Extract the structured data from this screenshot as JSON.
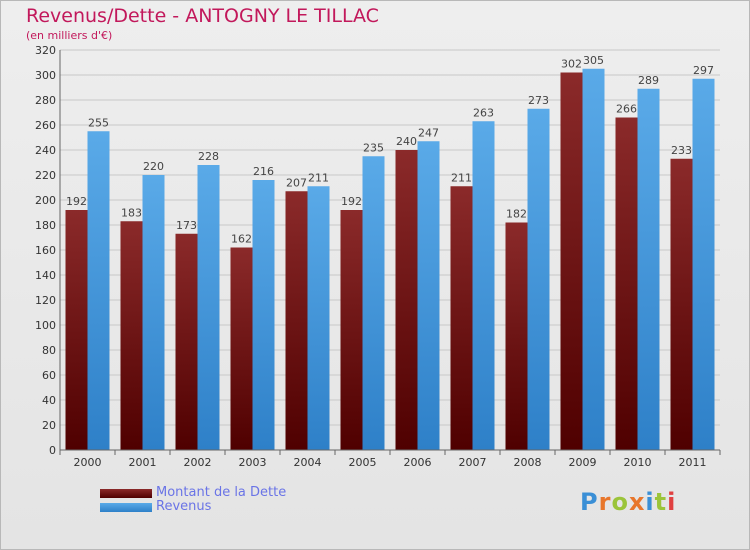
{
  "header": {
    "title": "Revenus/Dette - ANTOGNY LE TILLAC",
    "subtitle": "(en milliers d'€)"
  },
  "legend": {
    "dette": "Montant de la Dette",
    "revenus": "Revenus"
  },
  "logo": {
    "text": "Proxiti"
  },
  "colors": {
    "dette_top": "#8b2a2a",
    "dette_bottom": "#4f0000",
    "revenus_top": "#5aaae8",
    "revenus_bottom": "#2e80c8",
    "grid": "#c8c8c8"
  },
  "chart_data": {
    "type": "bar",
    "title": "Revenus/Dette - ANTOGNY LE TILLAC",
    "subtitle": "(en milliers d'€)",
    "xlabel": "",
    "ylabel": "",
    "categories": [
      "2000",
      "2001",
      "2002",
      "2003",
      "2004",
      "2005",
      "2006",
      "2007",
      "2008",
      "2009",
      "2010",
      "2011"
    ],
    "series": [
      {
        "name": "Montant de la Dette",
        "values": [
          192,
          183,
          173,
          162,
          207,
          192,
          240,
          211,
          182,
          302,
          266,
          233
        ]
      },
      {
        "name": "Revenus",
        "values": [
          255,
          220,
          228,
          216,
          211,
          235,
          247,
          263,
          273,
          305,
          289,
          297
        ]
      }
    ],
    "ylim": [
      0,
      320
    ],
    "yticks": [
      0,
      20,
      40,
      60,
      80,
      100,
      120,
      140,
      160,
      180,
      200,
      220,
      240,
      260,
      280,
      300,
      320
    ],
    "grid": true,
    "legend_position": "bottom-left"
  }
}
